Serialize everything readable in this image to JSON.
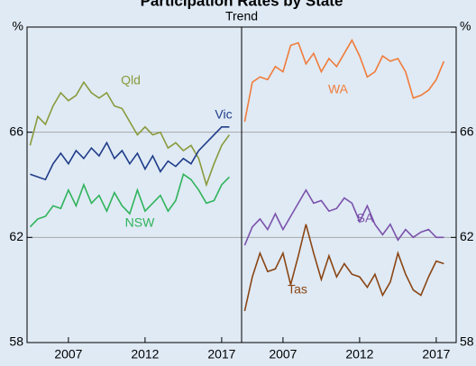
{
  "chart_data": {
    "type": "line",
    "title": "Participation Rates by State",
    "subtitle": "Trend",
    "ylim": [
      58,
      70
    ],
    "yticks": [
      58,
      62,
      66,
      {
        "value": 70,
        "label": "%"
      }
    ],
    "xlim": [
      2004.3,
      2018.3
    ],
    "xticks": [
      2007,
      2012,
      2017
    ],
    "grid": true,
    "x": [
      2004.5,
      2005,
      2005.5,
      2006,
      2006.5,
      2007,
      2007.5,
      2008,
      2008.5,
      2009,
      2009.5,
      2010,
      2010.5,
      2011,
      2011.5,
      2012,
      2012.5,
      2013,
      2013.5,
      2014,
      2014.5,
      2015,
      2015.5,
      2016,
      2016.5,
      2017,
      2017.5
    ],
    "panels": [
      {
        "series": [
          {
            "name": "Qld",
            "color": "#8a9a3b",
            "values": [
              65.5,
              66.6,
              66.3,
              67.0,
              67.5,
              67.2,
              67.4,
              67.9,
              67.5,
              67.3,
              67.5,
              67.0,
              66.9,
              66.4,
              65.9,
              66.2,
              65.9,
              66.0,
              65.4,
              65.6,
              65.3,
              65.5,
              65.0,
              64.0,
              64.8,
              65.5,
              65.9
            ]
          },
          {
            "name": "Vic",
            "color": "#1f3c88",
            "values": [
              64.4,
              64.3,
              64.2,
              64.8,
              65.2,
              64.8,
              65.3,
              65.0,
              65.4,
              65.1,
              65.6,
              65.0,
              65.3,
              64.8,
              65.2,
              64.6,
              65.1,
              64.5,
              64.9,
              64.7,
              65.0,
              64.8,
              65.3,
              65.6,
              65.9,
              66.2,
              66.2
            ]
          },
          {
            "name": "NSW",
            "color": "#2fb35a",
            "values": [
              62.4,
              62.7,
              62.8,
              63.2,
              63.1,
              63.8,
              63.2,
              64.0,
              63.3,
              63.6,
              63.0,
              63.7,
              63.2,
              62.9,
              63.8,
              63.0,
              63.3,
              63.6,
              63.0,
              63.4,
              64.4,
              64.2,
              63.8,
              63.3,
              63.4,
              64.0,
              64.3
            ]
          }
        ]
      },
      {
        "series": [
          {
            "name": "WA",
            "color": "#f07c3a",
            "values": [
              66.4,
              67.9,
              68.1,
              68.0,
              68.5,
              68.3,
              69.3,
              69.4,
              68.6,
              69.0,
              68.3,
              68.8,
              68.5,
              69.0,
              69.5,
              68.9,
              68.1,
              68.3,
              68.9,
              68.7,
              68.8,
              68.3,
              67.3,
              67.4,
              67.6,
              68.0,
              68.7
            ]
          },
          {
            "name": "SA",
            "color": "#7b52ab",
            "values": [
              61.7,
              62.4,
              62.7,
              62.3,
              62.9,
              62.3,
              62.8,
              63.3,
              63.8,
              63.3,
              63.4,
              63.0,
              63.1,
              63.5,
              63.3,
              62.6,
              63.2,
              62.5,
              62.1,
              62.5,
              61.9,
              62.3,
              62.0,
              62.2,
              62.3,
              62.0,
              62.0
            ]
          },
          {
            "name": "Tas",
            "color": "#8b4513",
            "values": [
              59.2,
              60.5,
              61.4,
              60.7,
              60.8,
              61.4,
              60.2,
              61.3,
              62.5,
              61.4,
              60.4,
              61.3,
              60.5,
              61.0,
              60.6,
              60.5,
              60.1,
              60.6,
              59.8,
              60.3,
              61.4,
              60.6,
              60.0,
              59.8,
              60.5,
              61.1,
              61.0
            ]
          }
        ]
      }
    ]
  }
}
